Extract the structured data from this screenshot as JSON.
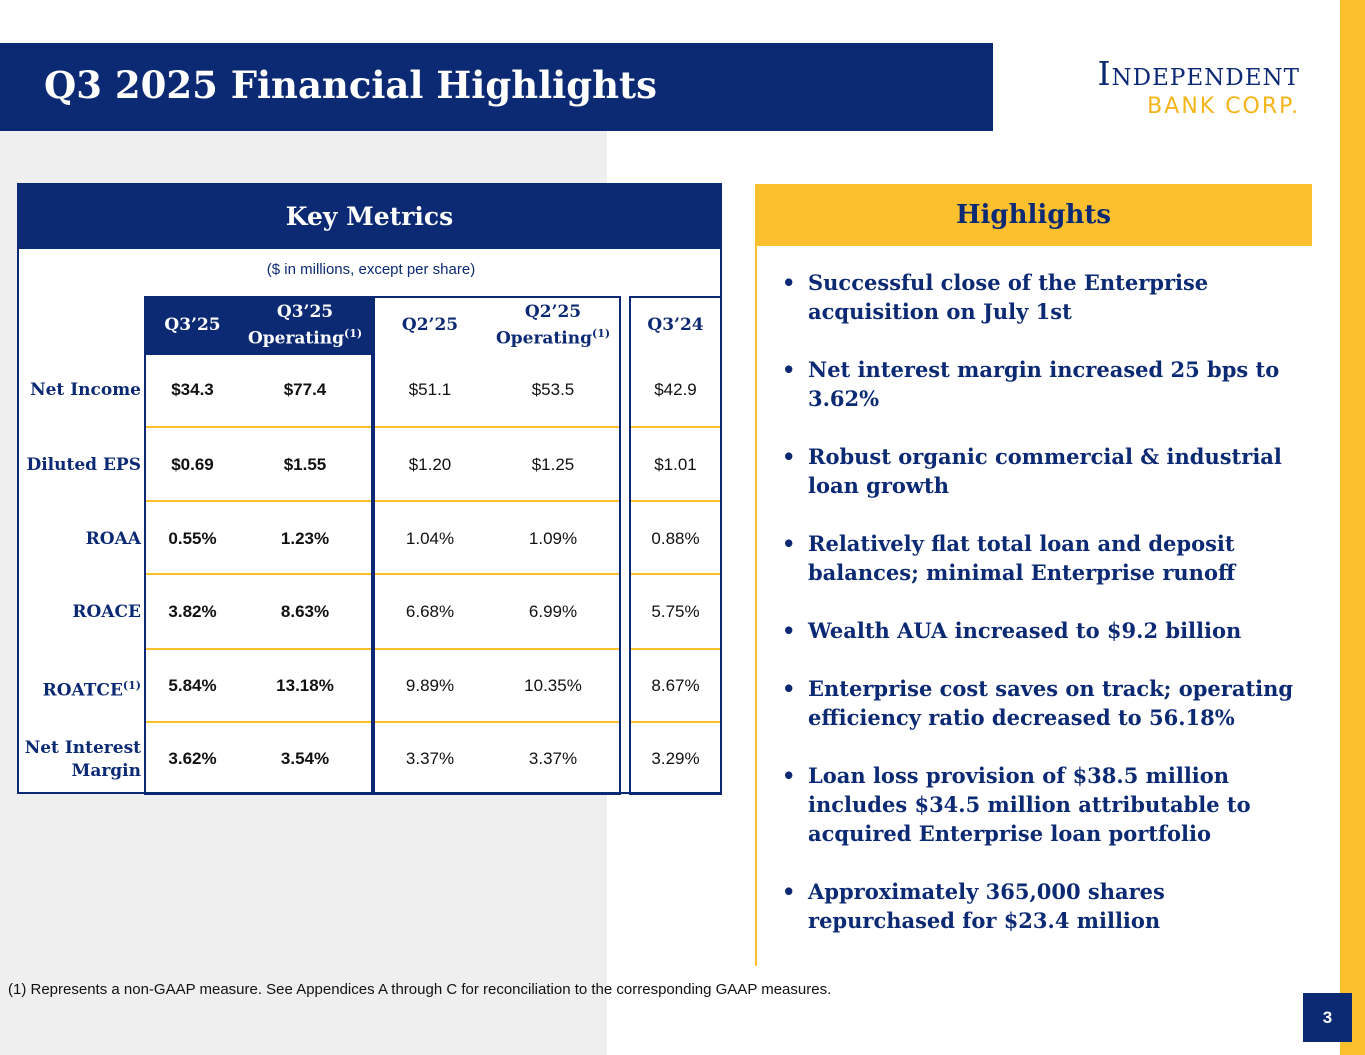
{
  "header": {
    "title": "Q3 2025 Financial Highlights",
    "logo_line1": "Independent",
    "logo_line2": "BANK CORP."
  },
  "key_metrics": {
    "title": "Key Metrics",
    "subtitle": "($ in millions, except per share)",
    "columns": [
      {
        "label": "Q3’25",
        "sup": ""
      },
      {
        "label": "Q3’25 Operating",
        "sup": "(1)"
      },
      {
        "label": "Q2’25",
        "sup": ""
      },
      {
        "label": "Q2’25 Operating",
        "sup": "(1)"
      },
      {
        "label": "Q3’24",
        "sup": ""
      }
    ],
    "col1": "Q3’25",
    "col2a": "Q3’25",
    "col2b": "Operating",
    "col3": "Q2’25",
    "col4a": "Q2’25",
    "col4b": "Operating",
    "col5": "Q3’24",
    "sup": "(1)",
    "rows": [
      {
        "label": "Net Income",
        "values": [
          "$34.3",
          "$77.4",
          "$51.1",
          "$53.5",
          "$42.9"
        ]
      },
      {
        "label": "Diluted EPS",
        "values": [
          "$0.69",
          "$1.55",
          "$1.20",
          "$1.25",
          "$1.01"
        ]
      },
      {
        "label": "ROAA",
        "values": [
          "0.55%",
          "1.23%",
          "1.04%",
          "1.09%",
          "0.88%"
        ]
      },
      {
        "label": "ROACE",
        "values": [
          "3.82%",
          "8.63%",
          "6.68%",
          "6.99%",
          "5.75%"
        ]
      },
      {
        "label": "ROATCE",
        "values": [
          "5.84%",
          "13.18%",
          "9.89%",
          "10.35%",
          "8.67%"
        ]
      },
      {
        "label": "Net Interest Margin",
        "values": [
          "3.62%",
          "3.54%",
          "3.37%",
          "3.37%",
          "3.29%"
        ]
      }
    ],
    "row_label_nim_1": "Net Interest",
    "row_label_nim_2": "Margin"
  },
  "highlights": {
    "title": "Highlights",
    "items": [
      "Successful close of the Enterprise acquisition on July 1st",
      "Net interest margin increased 25 bps to 3.62%",
      "Robust organic commercial & industrial loan growth",
      "Relatively flat total loan and deposit balances; minimal Enterprise runoff",
      "Wealth AUA increased to $9.2 billion",
      "Enterprise cost saves on track; operating efficiency ratio decreased to 56.18%",
      "Loan loss provision of $38.5 million includes $34.5 million attributable to acquired Enterprise loan portfolio",
      "Approximately 365,000 shares repurchased for $23.4 million"
    ]
  },
  "footnote": "(1) Represents a non-GAAP measure. See Appendices A through C for reconciliation to the corresponding GAAP measures.",
  "page_number": "3",
  "colors": {
    "navy": "#0c2a74",
    "gold": "#fcc02f",
    "gray_bg": "#efefef"
  },
  "bullet_char": "•"
}
